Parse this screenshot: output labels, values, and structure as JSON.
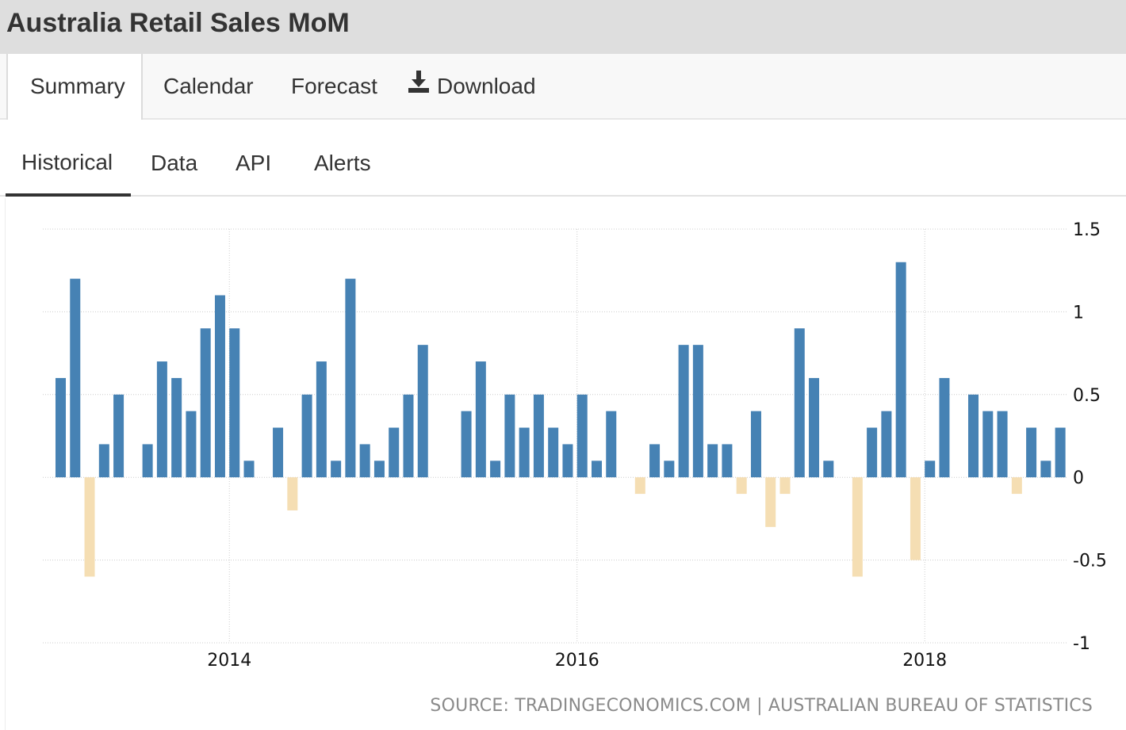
{
  "header": {
    "title": "Australia Retail Sales MoM"
  },
  "tabs": [
    {
      "label": "Summary"
    },
    {
      "label": "Calendar"
    },
    {
      "label": "Forecast"
    },
    {
      "label": "Download",
      "icon": "download-icon"
    }
  ],
  "subtabs": [
    {
      "label": "Historical"
    },
    {
      "label": "Data"
    },
    {
      "label": "API"
    },
    {
      "label": "Alerts"
    }
  ],
  "source": {
    "text": "SOURCE: TRADINGECONOMICS.COM | AUSTRALIAN BUREAU OF STATISTICS"
  },
  "colors": {
    "positive": "#4682b4",
    "negative": "#f5deb3",
    "grid": "#cccccc"
  },
  "chart_data": {
    "type": "bar",
    "title": "",
    "xlabel": "",
    "ylabel": "",
    "ylim": [
      -1,
      1.5
    ],
    "yticks": [
      "1.5",
      "1",
      "0.5",
      "0",
      "-0.5",
      "-1"
    ],
    "xticks": [
      "2014",
      "2016",
      "2018"
    ],
    "grid": true,
    "start_month": "2013-01",
    "values": [
      0.6,
      1.2,
      -0.6,
      0.2,
      0.5,
      0,
      0.2,
      0.7,
      0.6,
      0.4,
      0.9,
      1.1,
      0.9,
      0.1,
      0,
      0.3,
      -0.2,
      0.5,
      0.7,
      0.1,
      1.2,
      0.2,
      0.1,
      0.3,
      0.5,
      0.8,
      0,
      0,
      0.4,
      0.7,
      0.1,
      0.5,
      0.3,
      0.5,
      0.3,
      0.2,
      0.5,
      0.1,
      0.4,
      0,
      -0.1,
      0.2,
      0.1,
      0.8,
      0.8,
      0.2,
      0.2,
      -0.1,
      0.4,
      -0.3,
      -0.1,
      0.9,
      0.6,
      0.1,
      0,
      -0.6,
      0.3,
      0.4,
      1.3,
      -0.5,
      0.1,
      0.6,
      0,
      0.5,
      0.4,
      0.4,
      -0.1,
      0.3,
      0.1,
      0.3
    ]
  }
}
